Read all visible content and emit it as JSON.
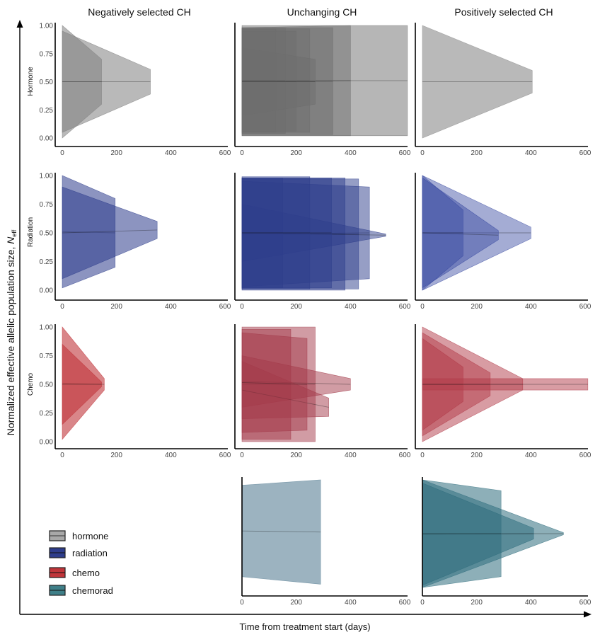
{
  "chart_data": {
    "type": "area",
    "title": "",
    "xlabel": "Time from treatment start (days)",
    "ylabel_main": "Normalized effective allelic population size, ",
    "ylabel_symbol": "N",
    "ylabel_sub": "eff",
    "columns": [
      "Negatively selected CH",
      "Unchanging CH",
      "Positively selected CH"
    ],
    "rows": [
      "Hormone",
      "Radiation",
      "Chemo",
      ""
    ],
    "xlim": [
      0,
      600
    ],
    "ylim": [
      0,
      1
    ],
    "x_ticks": [
      "0",
      "200",
      "400",
      "600"
    ],
    "y_ticks": [
      "0.00",
      "0.25",
      "0.50",
      "0.75",
      "1.00"
    ],
    "legend": {
      "position": "bottom-left",
      "items": [
        {
          "label": "hormone",
          "color": "#9e9e9e"
        },
        {
          "label": "radiation",
          "color": "#2e3d8c"
        },
        {
          "label": "chemo",
          "color": "#c0353a"
        },
        {
          "label": "chemorad",
          "color": "#3f7f88"
        }
      ]
    },
    "panels": [
      {
        "row": 0,
        "col": 0,
        "color": "#808080",
        "opacity": 0.55,
        "bands": [
          {
            "t_end": 145,
            "y0": [
              0.0,
              1.0
            ],
            "y1": [
              0.3,
              0.7
            ]
          },
          {
            "t_end": 325,
            "y0": [
              0.05,
              0.95
            ],
            "y1": [
              0.39,
              0.61
            ]
          }
        ]
      },
      {
        "row": 0,
        "col": 1,
        "color": "#6e6e6e",
        "opacity": 0.5,
        "bands": [
          {
            "t_end": 400,
            "y0": [
              0.02,
              0.98
            ],
            "y1": [
              0.02,
              1.0
            ]
          },
          {
            "t_end": 610,
            "y0": [
              0.02,
              1.0
            ],
            "y1": [
              0.02,
              1.0
            ]
          },
          {
            "t_end": 335,
            "y0": [
              0.03,
              0.98
            ],
            "y1": [
              0.03,
              0.98
            ]
          },
          {
            "t_end": 250,
            "y0": [
              0.05,
              0.97
            ],
            "y1": [
              0.05,
              0.97
            ]
          },
          {
            "t_end": 200,
            "y0": [
              0.06,
              0.95
            ],
            "y1": [
              0.06,
              0.95
            ]
          },
          {
            "t_end": 160,
            "y0": [
              0.04,
              0.98
            ],
            "y1": [
              0.04,
              0.98
            ]
          },
          {
            "t_end": 125,
            "y0": [
              0.05,
              0.97
            ],
            "y1": [
              0.05,
              0.97
            ]
          },
          {
            "t_end": 270,
            "y0": [
              0.2,
              0.8
            ],
            "y1": [
              0.3,
              0.7
            ]
          }
        ]
      },
      {
        "row": 0,
        "col": 2,
        "color": "#8a8a8a",
        "opacity": 0.6,
        "bands": [
          {
            "t_end": 405,
            "y0": [
              0.0,
              1.0
            ],
            "y1": [
              0.4,
              0.6
            ]
          }
        ]
      },
      {
        "row": 1,
        "col": 0,
        "color": "#2e3d8c",
        "opacity": 0.55,
        "bands": [
          {
            "t_end": 195,
            "y0": [
              0.02,
              1.0
            ],
            "y1": [
              0.2,
              0.8
            ]
          },
          {
            "t_end": 350,
            "y0": [
              0.1,
              0.9
            ],
            "y1": [
              0.45,
              0.6
            ]
          }
        ]
      },
      {
        "row": 1,
        "col": 1,
        "color": "#2e3d8c",
        "opacity": 0.5,
        "bands": [
          {
            "t_end": 380,
            "y0": [
              0.0,
              0.98
            ],
            "y1": [
              0.0,
              0.98
            ]
          },
          {
            "t_end": 430,
            "y0": [
              0.01,
              0.97
            ],
            "y1": [
              0.01,
              0.97
            ]
          },
          {
            "t_end": 470,
            "y0": [
              0.03,
              0.95
            ],
            "y1": [
              0.1,
              0.9
            ]
          },
          {
            "t_end": 530,
            "y0": [
              0.25,
              0.75
            ],
            "y1": [
              0.47,
              0.49
            ]
          },
          {
            "t_end": 150,
            "y0": [
              0.02,
              0.98
            ],
            "y1": [
              0.02,
              0.98
            ]
          },
          {
            "t_end": 250,
            "y0": [
              0.01,
              0.99
            ],
            "y1": [
              0.01,
              0.99
            ]
          },
          {
            "t_end": 330,
            "y0": [
              0.02,
              0.98
            ],
            "y1": [
              0.02,
              0.98
            ]
          }
        ]
      },
      {
        "row": 1,
        "col": 2,
        "color": "#3546a0",
        "opacity": 0.45,
        "bands": [
          {
            "t_end": 400,
            "y0": [
              0.0,
              1.0
            ],
            "y1": [
              0.45,
              0.55
            ]
          },
          {
            "t_end": 280,
            "y0": [
              0.02,
              0.98
            ],
            "y1": [
              0.44,
              0.52
            ]
          },
          {
            "t_end": 150,
            "y0": [
              0.0,
              1.0
            ],
            "y1": [
              0.3,
              0.7
            ]
          }
        ]
      },
      {
        "row": 2,
        "col": 0,
        "color": "#c0353a",
        "opacity": 0.6,
        "bands": [
          {
            "t_end": 155,
            "y0": [
              0.02,
              1.0
            ],
            "y1": [
              0.45,
              0.55
            ]
          },
          {
            "t_end": 145,
            "y0": [
              0.15,
              0.85
            ],
            "y1": [
              0.48,
              0.52
            ]
          }
        ]
      },
      {
        "row": 2,
        "col": 1,
        "color": "#a33a4a",
        "opacity": 0.5,
        "bands": [
          {
            "t_end": 270,
            "y0": [
              0.0,
              1.0
            ],
            "y1": [
              0.0,
              1.0
            ]
          },
          {
            "t_end": 180,
            "y0": [
              0.02,
              0.98
            ],
            "y1": [
              0.02,
              0.98
            ]
          },
          {
            "t_end": 400,
            "y0": [
              0.3,
              0.75
            ],
            "y1": [
              0.45,
              0.55
            ]
          },
          {
            "t_end": 320,
            "y0": [
              0.2,
              0.7
            ],
            "y1": [
              0.22,
              0.38
            ]
          },
          {
            "t_end": 240,
            "y0": [
              0.08,
              0.95
            ],
            "y1": [
              0.1,
              0.9
            ]
          }
        ]
      },
      {
        "row": 2,
        "col": 2,
        "color": "#b23a48",
        "opacity": 0.5,
        "bands": [
          {
            "t_end": 370,
            "y0": [
              0.0,
              1.0
            ],
            "y1": [
              0.45,
              0.55
            ]
          },
          {
            "t_end": 610,
            "y0": [
              0.45,
              0.55
            ],
            "y1": [
              0.45,
              0.55
            ]
          },
          {
            "t_end": 250,
            "y0": [
              0.05,
              0.95
            ],
            "y1": [
              0.4,
              0.6
            ]
          },
          {
            "t_end": 150,
            "y0": [
              0.1,
              0.9
            ],
            "y1": [
              0.35,
              0.65
            ]
          }
        ]
      },
      {
        "row": 3,
        "col": 1,
        "color": "#5a8096",
        "opacity": 0.6,
        "bands": [
          {
            "t_end": 290,
            "y0": [
              0.1,
              0.95
            ],
            "y1": [
              0.03,
              1.0
            ]
          }
        ]
      },
      {
        "row": 3,
        "col": 2,
        "color": "#2f6e7d",
        "opacity": 0.55,
        "bands": [
          {
            "t_end": 520,
            "y0": [
              0.0,
              1.0
            ],
            "y1": [
              0.49,
              0.51
            ]
          },
          {
            "t_end": 410,
            "y0": [
              0.02,
              0.97
            ],
            "y1": [
              0.45,
              0.55
            ]
          },
          {
            "t_end": 290,
            "y0": [
              0.0,
              1.0
            ],
            "y1": [
              0.1,
              0.9
            ]
          }
        ]
      }
    ]
  }
}
